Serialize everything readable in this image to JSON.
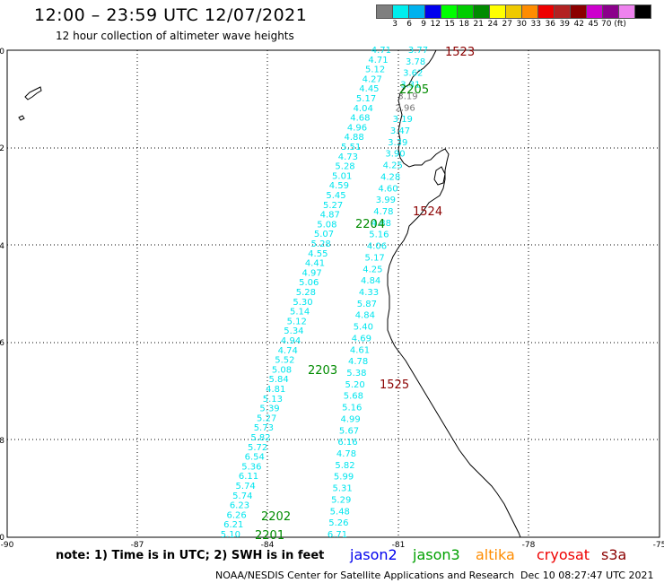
{
  "header": {
    "title": "12:00 – 23:59 UTC 12/07/2021",
    "subtitle": "12 hour collection of altimeter wave heights"
  },
  "legend": {
    "colors": [
      "#7f7f7f",
      "#00eeee",
      "#00b2ee",
      "#0000ee",
      "#00ff00",
      "#00cd00",
      "#008b00",
      "#ffff00",
      "#eec900",
      "#ff8c00",
      "#ee0000",
      "#b22222",
      "#8b0000",
      "#cd00cd",
      "#8b008b",
      "#ee82ee",
      "#000000"
    ],
    "labels": [
      "3",
      "6",
      "9",
      "12",
      "15",
      "18",
      "21",
      "24",
      "27",
      "30",
      "33",
      "36",
      "39",
      "42",
      "45",
      "70 (ft)"
    ]
  },
  "axes": {
    "y_labels": [
      "0",
      "-2",
      "-4",
      "-6",
      "-8",
      "-10"
    ],
    "x_labels": [
      "-90",
      "-87",
      "-84",
      "-81",
      "-78",
      "-75"
    ]
  },
  "track_labels": [
    {
      "text": "1523",
      "color": "#8b0000"
    },
    {
      "text": "2205",
      "color": "#008b00"
    },
    {
      "text": "1524",
      "color": "#8b0000"
    },
    {
      "text": "2204",
      "color": "#008b00"
    },
    {
      "text": "2203",
      "color": "#008b00"
    },
    {
      "text": "1525",
      "color": "#8b0000"
    },
    {
      "text": "2202",
      "color": "#008b00"
    },
    {
      "text": "2201",
      "color": "#008b00"
    }
  ],
  "track_a": [
    "4.71",
    "4.71",
    "5.12",
    "4.27",
    "4.45",
    "5.17",
    "4.04",
    "4.68",
    "4.96",
    "4.88",
    "5.51",
    "4.73",
    "5.28",
    "5.01",
    "4.59",
    "5.45",
    "5.27",
    "4.87",
    "5.08",
    "5.07",
    "5.28",
    "4.55",
    "4.41",
    "4.97",
    "5.06",
    "5.28",
    "5.30",
    "5.14",
    "5.12",
    "5.34",
    "4.94",
    "4.74",
    "5.52",
    "5.08",
    "5.84",
    "4.81",
    "5.13",
    "5.39",
    "5.27",
    "5.73",
    "5.82",
    "5.72",
    "6.54",
    "5.36",
    "6.11",
    "5.74",
    "5.74",
    "6.23",
    "6.26",
    "6.21",
    "5.10"
  ],
  "track_b": [
    "3.77",
    "3.78",
    "3.62",
    "3.31",
    "3.19",
    "2.96",
    "3.19",
    "3.47",
    "3.39",
    "3.90",
    "4.25",
    "4.28",
    "4.60",
    "3.99",
    "4.78",
    "4.88",
    "5.16",
    "4.06",
    "5.17",
    "4.25",
    "4.84",
    "4.33",
    "5.87",
    "4.84",
    "5.40",
    "4.69",
    "4.61",
    "4.78",
    "5.38",
    "5.20",
    "5.68",
    "5.16",
    "4.99",
    "5.67",
    "6.16",
    "4.78",
    "5.82",
    "5.99",
    "5.31",
    "5.29",
    "5.48",
    "5.26",
    "6.71"
  ],
  "footer": {
    "note": "note: 1) Time is in UTC; 2) SWH is in feet",
    "satellites": [
      {
        "name": "jason2",
        "color": "#0000ee"
      },
      {
        "name": "jason3",
        "color": "#00a000"
      },
      {
        "name": "altika",
        "color": "#ff8c00"
      },
      {
        "name": "cryosat",
        "color": "#ee0000"
      },
      {
        "name": "s3a",
        "color": "#8b0000"
      }
    ],
    "credit": "NOAA/NESDIS Center for Satellite Applications and Research",
    "timestamp": "Dec 10 08:27:47 UTC 2021"
  }
}
